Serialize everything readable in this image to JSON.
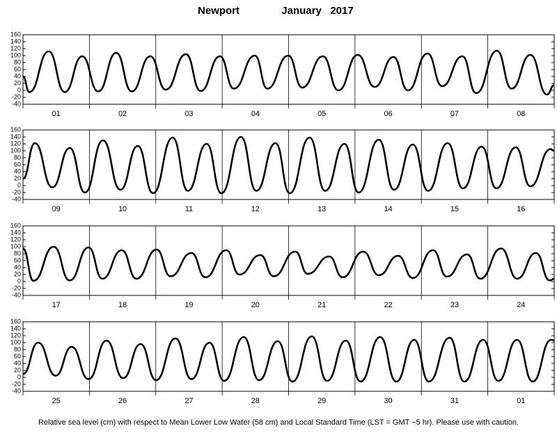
{
  "title": "Newport",
  "date": "January   2017",
  "caption": "Relative sea level (cm) with respect to Mean Lower Low Water (58 cm) and Local Standard Time (LST = GMT −5 hr). Please use with caution.",
  "chart_data": [
    {
      "type": "line",
      "color": "#000000",
      "xlim": [
        0,
        192
      ],
      "xticks": [
        0,
        24,
        48,
        72,
        96,
        120,
        144,
        168,
        192
      ],
      "ylim": [
        -40,
        160
      ],
      "yticks": [
        -40,
        -20,
        0,
        20,
        40,
        60,
        80,
        100,
        120,
        140,
        160
      ],
      "categories": [
        "01",
        "02",
        "03",
        "04",
        "05",
        "06",
        "07",
        "08"
      ],
      "x": [
        0,
        2.3,
        9.3,
        15.1,
        21.4,
        27.2,
        33.7,
        39.3,
        46.0,
        51.6,
        58.9,
        64.2,
        71.2,
        76.2,
        83.8,
        88.3,
        95.9,
        100.9,
        108.4,
        114.0,
        121.0,
        127.1,
        133.9,
        139.1,
        146.2,
        151.5,
        158.8,
        163.8,
        171.3,
        176.6,
        183.4,
        189.4,
        192
      ],
      "values": [
        40,
        -5,
        112,
        -5,
        98,
        -3,
        108,
        -3,
        98,
        2,
        104,
        -2,
        98,
        5,
        100,
        5,
        100,
        8,
        98,
        0,
        102,
        10,
        96,
        0,
        106,
        12,
        98,
        -8,
        114,
        5,
        102,
        -12,
        15
      ]
    },
    {
      "type": "line",
      "color": "#000000",
      "xlim": [
        0,
        192
      ],
      "xticks": [
        0,
        24,
        48,
        72,
        96,
        120,
        144,
        168,
        192
      ],
      "ylim": [
        -40,
        160
      ],
      "yticks": [
        -40,
        -20,
        0,
        20,
        40,
        60,
        80,
        100,
        120,
        140,
        160
      ],
      "categories": [
        "09",
        "10",
        "11",
        "12",
        "13",
        "14",
        "15",
        "16"
      ],
      "x": [
        0,
        4.3,
        10.6,
        16.9,
        22.4,
        28.9,
        35.2,
        41.5,
        47.0,
        54.1,
        59.6,
        66.4,
        71.7,
        78.8,
        84.3,
        91.3,
        96.4,
        103.6,
        109.2,
        116.2,
        121.3,
        128.6,
        134.1,
        140.9,
        146.4,
        153.5,
        159.0,
        165.8,
        171.1,
        178.1,
        183.4,
        190.7,
        192
      ],
      "values": [
        20,
        122,
        -5,
        108,
        -20,
        130,
        -12,
        114,
        -22,
        138,
        -15,
        120,
        -22,
        140,
        -15,
        122,
        -22,
        138,
        -15,
        120,
        -20,
        132,
        -12,
        118,
        -15,
        122,
        -8,
        112,
        -8,
        110,
        -2,
        105,
        100
      ]
    },
    {
      "type": "line",
      "color": "#000000",
      "xlim": [
        0,
        192
      ],
      "xticks": [
        0,
        24,
        48,
        72,
        96,
        120,
        144,
        168,
        192
      ],
      "ylim": [
        -40,
        160
      ],
      "yticks": [
        -40,
        -20,
        0,
        20,
        40,
        60,
        80,
        100,
        120,
        140,
        160
      ],
      "categories": [
        "17",
        "18",
        "19",
        "20",
        "21",
        "22",
        "23",
        "24"
      ],
      "x": [
        0,
        3.8,
        11.1,
        16.9,
        23.7,
        28.7,
        35.7,
        41.0,
        48.3,
        53.3,
        60.9,
        65.9,
        73.5,
        78.2,
        85.8,
        90.6,
        98.4,
        102.9,
        110.7,
        115.5,
        123.0,
        128.6,
        135.6,
        140.9,
        148.2,
        153.2,
        160.5,
        165.3,
        172.8,
        178.6,
        185.4,
        190.4,
        192
      ],
      "values": [
        95,
        2,
        100,
        3,
        98,
        8,
        90,
        8,
        92,
        15,
        82,
        12,
        90,
        20,
        76,
        15,
        86,
        22,
        72,
        12,
        86,
        18,
        74,
        10,
        90,
        14,
        78,
        8,
        95,
        8,
        82,
        3,
        8
      ]
    },
    {
      "type": "line",
      "color": "#000000",
      "xlim": [
        0,
        192
      ],
      "xticks": [
        0,
        24,
        48,
        72,
        96,
        120,
        144,
        168,
        192
      ],
      "ylim": [
        -40,
        160
      ],
      "yticks": [
        -40,
        -20,
        0,
        20,
        40,
        60,
        80,
        100,
        120,
        140,
        160
      ],
      "categories": [
        "25",
        "26",
        "27",
        "28",
        "29",
        "30",
        "31",
        "01"
      ],
      "x": [
        0,
        5.5,
        11.8,
        17.6,
        23.7,
        30.2,
        36.2,
        42.5,
        48.1,
        55.1,
        60.9,
        67.4,
        72.7,
        79.8,
        85.3,
        92.1,
        97.4,
        104.4,
        109.9,
        116.7,
        122.0,
        129.1,
        134.9,
        141.4,
        146.7,
        154.2,
        159.5,
        166.3,
        171.8,
        178.6,
        184.2,
        190.9,
        192
      ],
      "values": [
        10,
        100,
        5,
        88,
        -5,
        106,
        -2,
        96,
        -8,
        112,
        -5,
        100,
        -10,
        116,
        -8,
        104,
        -12,
        118,
        -10,
        106,
        -12,
        116,
        -12,
        108,
        -12,
        114,
        -12,
        108,
        -10,
        108,
        -12,
        108,
        106
      ]
    }
  ]
}
